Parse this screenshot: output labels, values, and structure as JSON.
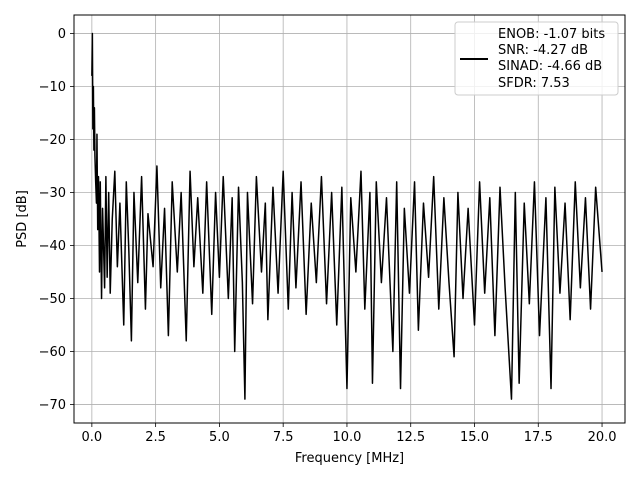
{
  "chart_data": {
    "type": "line",
    "title": "",
    "xlabel": "Frequency [MHz]",
    "ylabel": "PSD [dB]",
    "xlim": [
      -0.7,
      20.9
    ],
    "ylim": [
      -73.5,
      3.5
    ],
    "xticks": [
      0.0,
      2.5,
      5.0,
      7.5,
      10.0,
      12.5,
      15.0,
      17.5,
      20.0
    ],
    "xtick_labels": [
      "0.0",
      "2.5",
      "5.0",
      "7.5",
      "10.0",
      "12.5",
      "15.0",
      "17.5",
      "20.0"
    ],
    "yticks": [
      0,
      -10,
      -20,
      -30,
      -40,
      -50,
      -60,
      -70
    ],
    "ytick_labels": [
      "0",
      "−10",
      "−20",
      "−30",
      "−40",
      "−50",
      "−60",
      "−70"
    ],
    "grid": true,
    "legend_position": "top-right",
    "legend_entries": [
      "ENOB: -1.07 bits",
      "SNR: -4.27 dB",
      "SINAD: -4.66 dB",
      "SFDR: 7.53"
    ],
    "series": [
      {
        "color": "#000000",
        "description": "noisy power spectral density, peak 0 dB at DC, noise floor between about -25 and -50 dB",
        "points": [
          [
            0.0,
            -8
          ],
          [
            0.02,
            0.0
          ],
          [
            0.04,
            -18
          ],
          [
            0.06,
            -10
          ],
          [
            0.08,
            -22
          ],
          [
            0.1,
            -14
          ],
          [
            0.12,
            -23
          ],
          [
            0.15,
            -28
          ],
          [
            0.18,
            -32
          ],
          [
            0.2,
            -19
          ],
          [
            0.23,
            -37
          ],
          [
            0.26,
            -27
          ],
          [
            0.3,
            -45
          ],
          [
            0.33,
            -28
          ],
          [
            0.38,
            -50
          ],
          [
            0.42,
            -33
          ],
          [
            0.5,
            -48
          ],
          [
            0.55,
            -27
          ],
          [
            0.6,
            -46
          ],
          [
            0.66,
            -30
          ],
          [
            0.72,
            -49
          ],
          [
            0.8,
            -35
          ],
          [
            0.9,
            -26
          ],
          [
            1.0,
            -44
          ],
          [
            1.1,
            -32
          ],
          [
            1.25,
            -55
          ],
          [
            1.35,
            -28
          ],
          [
            1.45,
            -41
          ],
          [
            1.55,
            -58
          ],
          [
            1.65,
            -30
          ],
          [
            1.8,
            -47
          ],
          [
            1.95,
            -27
          ],
          [
            2.1,
            -52
          ],
          [
            2.2,
            -34
          ],
          [
            2.4,
            -44
          ],
          [
            2.55,
            -25
          ],
          [
            2.7,
            -48
          ],
          [
            2.85,
            -33
          ],
          [
            3.0,
            -57
          ],
          [
            3.15,
            -28
          ],
          [
            3.35,
            -45
          ],
          [
            3.5,
            -30
          ],
          [
            3.7,
            -58
          ],
          [
            3.85,
            -26
          ],
          [
            4.0,
            -44
          ],
          [
            4.15,
            -31
          ],
          [
            4.35,
            -49
          ],
          [
            4.5,
            -28
          ],
          [
            4.7,
            -53
          ],
          [
            4.85,
            -30
          ],
          [
            5.0,
            -46
          ],
          [
            5.15,
            -27
          ],
          [
            5.35,
            -50
          ],
          [
            5.5,
            -31
          ],
          [
            5.6,
            -60
          ],
          [
            5.75,
            -29
          ],
          [
            5.9,
            -47
          ],
          [
            6.0,
            -69
          ],
          [
            6.1,
            -30
          ],
          [
            6.3,
            -51
          ],
          [
            6.45,
            -27
          ],
          [
            6.65,
            -45
          ],
          [
            6.8,
            -32
          ],
          [
            6.9,
            -54
          ],
          [
            7.1,
            -29
          ],
          [
            7.3,
            -49
          ],
          [
            7.5,
            -26
          ],
          [
            7.7,
            -52
          ],
          [
            7.85,
            -30
          ],
          [
            8.0,
            -48
          ],
          [
            8.2,
            -28
          ],
          [
            8.4,
            -53
          ],
          [
            8.6,
            -32
          ],
          [
            8.8,
            -47
          ],
          [
            9.0,
            -27
          ],
          [
            9.2,
            -51
          ],
          [
            9.4,
            -30
          ],
          [
            9.6,
            -55
          ],
          [
            9.8,
            -29
          ],
          [
            10.0,
            -67
          ],
          [
            10.15,
            -31
          ],
          [
            10.35,
            -45
          ],
          [
            10.55,
            -26
          ],
          [
            10.7,
            -52
          ],
          [
            10.9,
            -30
          ],
          [
            11.0,
            -66
          ],
          [
            11.15,
            -28
          ],
          [
            11.35,
            -47
          ],
          [
            11.55,
            -31
          ],
          [
            11.8,
            -60
          ],
          [
            11.95,
            -28
          ],
          [
            12.1,
            -67
          ],
          [
            12.25,
            -33
          ],
          [
            12.45,
            -49
          ],
          [
            12.65,
            -28
          ],
          [
            12.8,
            -56
          ],
          [
            13.0,
            -32
          ],
          [
            13.2,
            -46
          ],
          [
            13.4,
            -27
          ],
          [
            13.6,
            -52
          ],
          [
            13.8,
            -31
          ],
          [
            14.0,
            -47
          ],
          [
            14.2,
            -61
          ],
          [
            14.35,
            -30
          ],
          [
            14.55,
            -50
          ],
          [
            14.75,
            -33
          ],
          [
            15.0,
            -55
          ],
          [
            15.2,
            -28
          ],
          [
            15.4,
            -49
          ],
          [
            15.6,
            -31
          ],
          [
            15.8,
            -57
          ],
          [
            16.0,
            -29
          ],
          [
            16.2,
            -48
          ],
          [
            16.45,
            -69
          ],
          [
            16.6,
            -30
          ],
          [
            16.75,
            -66
          ],
          [
            16.95,
            -32
          ],
          [
            17.15,
            -51
          ],
          [
            17.35,
            -28
          ],
          [
            17.55,
            -57
          ],
          [
            17.8,
            -31
          ],
          [
            18.0,
            -67
          ],
          [
            18.15,
            -29
          ],
          [
            18.35,
            -49
          ],
          [
            18.55,
            -32
          ],
          [
            18.75,
            -54
          ],
          [
            18.95,
            -28
          ],
          [
            19.15,
            -48
          ],
          [
            19.35,
            -31
          ],
          [
            19.55,
            -52
          ],
          [
            19.75,
            -29
          ],
          [
            20.0,
            -45
          ]
        ]
      }
    ]
  }
}
